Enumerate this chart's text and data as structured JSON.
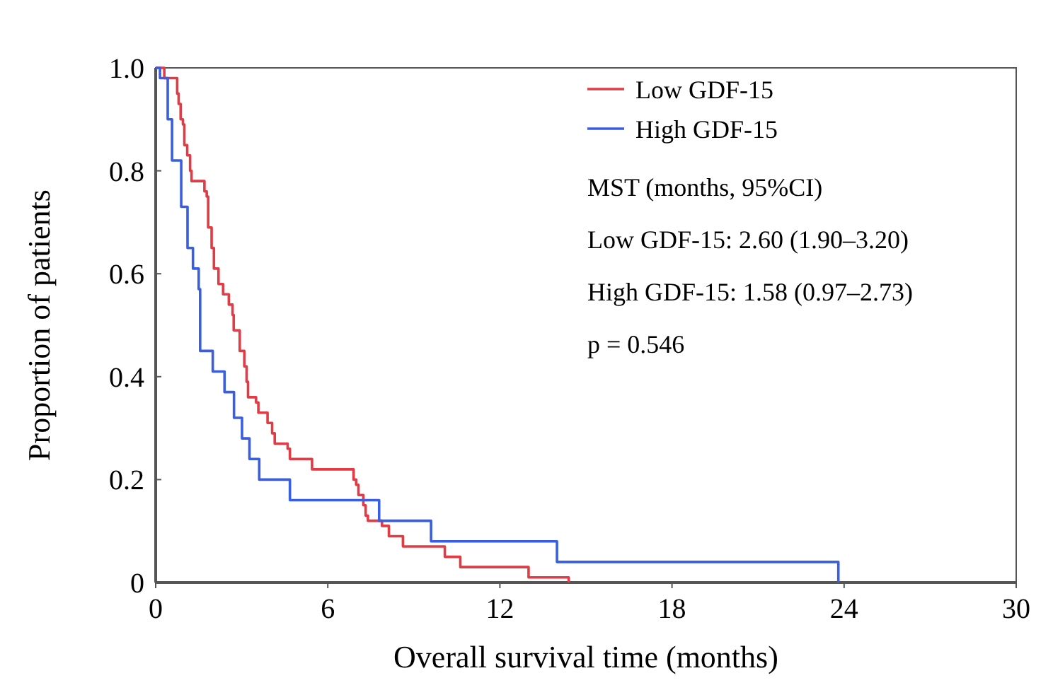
{
  "chart_data": {
    "type": "step",
    "xlabel": "Overall survival time (months)",
    "ylabel": "Proportion of patients",
    "xlim": [
      0,
      30
    ],
    "xticks": [
      0,
      6,
      12,
      18,
      24,
      30
    ],
    "ylim": [
      0,
      1
    ],
    "yticks": [
      0,
      0.2,
      0.4,
      0.6,
      0.8,
      {
        "value": 1,
        "label": "1.0"
      }
    ],
    "grid": false,
    "legend": "top right",
    "marker": "none",
    "line_style": "solid",
    "series": [
      {
        "name": "Low GDF-15",
        "color": "#e03c46",
        "x": [
          0,
          0.3,
          0.75,
          0.8,
          0.87,
          0.95,
          1.0,
          1.1,
          1.2,
          1.25,
          1.38,
          1.7,
          1.78,
          1.83,
          1.95,
          2.03,
          2.19,
          2.35,
          2.55,
          2.68,
          2.72,
          2.93,
          3.09,
          3.17,
          3.22,
          3.5,
          3.58,
          3.9,
          4.06,
          4.15,
          4.6,
          4.68,
          5.45,
          6.9,
          6.99,
          7.07,
          7.24,
          7.32,
          7.4,
          7.89,
          8.13,
          8.62,
          10.08,
          10.62,
          13.0,
          14.4
        ],
        "values": [
          1.0,
          0.98,
          0.95,
          0.93,
          0.9,
          0.89,
          0.85,
          0.83,
          0.8,
          0.78,
          0.78,
          0.76,
          0.75,
          0.69,
          0.65,
          0.61,
          0.58,
          0.56,
          0.54,
          0.52,
          0.49,
          0.45,
          0.42,
          0.39,
          0.36,
          0.35,
          0.33,
          0.31,
          0.29,
          0.27,
          0.26,
          0.24,
          0.22,
          0.2,
          0.19,
          0.17,
          0.15,
          0.13,
          0.12,
          0.11,
          0.09,
          0.07,
          0.05,
          0.03,
          0.01,
          0
        ]
      },
      {
        "name": "High GDF-15",
        "color": "#3a5ee0",
        "x": [
          0,
          0.15,
          0.42,
          0.57,
          0.89,
          1.11,
          1.3,
          1.5,
          1.55,
          1.99,
          2.4,
          2.73,
          3.01,
          3.27,
          3.61,
          4.68,
          7.79,
          9.6,
          13.99,
          23.8
        ],
        "values": [
          1.0,
          0.98,
          0.9,
          0.82,
          0.73,
          0.65,
          0.61,
          0.57,
          0.45,
          0.41,
          0.37,
          0.32,
          0.28,
          0.24,
          0.2,
          0.16,
          0.12,
          0.08,
          0.04,
          0
        ]
      }
    ],
    "annotations": [
      "MST (months,  95%CI)",
      "Low GDF-15: 2.60 (1.90–3.20)",
      "High GDF-15: 1.58 (0.97–2.73)",
      "p = 0.546"
    ]
  }
}
